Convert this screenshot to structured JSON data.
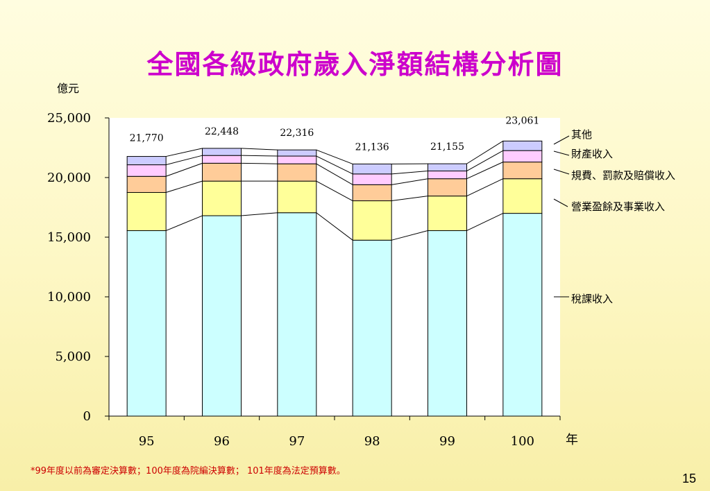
{
  "title": "全國各級政府歲入淨額結構分析圖",
  "footnote": "*99年度以前為審定決算數；100年度為院編決算數； 101年度為法定預算數。",
  "page_number": "15",
  "chart_data": {
    "type": "bar",
    "stacked": true,
    "title": "全國各級政府歲入淨額結構分析圖",
    "ylabel": "億元",
    "xlabel": "年",
    "ylim": [
      0,
      25000
    ],
    "yticks": [
      "0",
      "5,000",
      "10,000",
      "15,000",
      "20,000",
      "25,000"
    ],
    "categories": [
      "95",
      "96",
      "97",
      "98",
      "99",
      "100"
    ],
    "totals": [
      "21,770",
      "22,448",
      "22,316",
      "21,136",
      "21,155",
      "23,061"
    ],
    "series": [
      {
        "name": "稅課收入",
        "color": "#ccffff",
        "values": [
          15550,
          16800,
          17050,
          14750,
          15550,
          17000
        ]
      },
      {
        "name": "營業盈餘及事業收入",
        "color": "#ffff99",
        "values": [
          3200,
          2900,
          2650,
          3300,
          2900,
          2900
        ]
      },
      {
        "name": "規費、罰款及賠償收入",
        "color": "#ffcc99",
        "values": [
          1350,
          1500,
          1450,
          1350,
          1450,
          1400
        ]
      },
      {
        "name": "財產收入",
        "color": "#ffccff",
        "values": [
          970,
          650,
          650,
          900,
          650,
          960
        ]
      },
      {
        "name": "其他",
        "color": "#ccccff",
        "values": [
          700,
          598,
          516,
          836,
          605,
          801
        ]
      }
    ],
    "grid": false,
    "legend": "right"
  }
}
